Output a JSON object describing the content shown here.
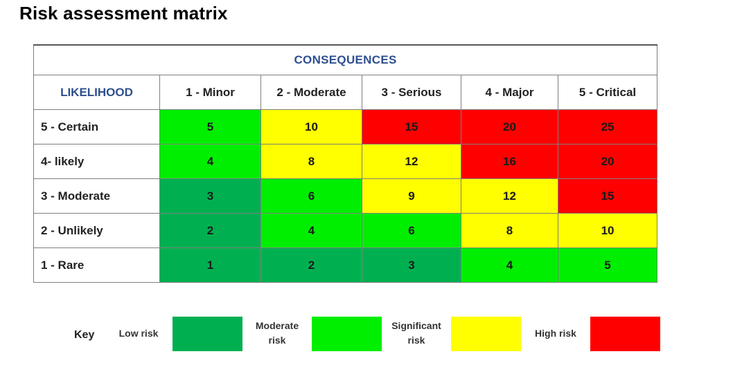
{
  "title": "Risk assessment matrix",
  "matrix": {
    "consequences_label": "CONSEQUENCES",
    "likelihood_label": "LIKELIHOOD",
    "columns": [
      "1 - Minor",
      "2 - Moderate",
      "3 - Serious",
      "4 - Major",
      "5 - Critical"
    ],
    "rows": [
      {
        "label": "5 - Certain",
        "values": [
          "5",
          "10",
          "15",
          "20",
          "25"
        ],
        "levels": [
          "significant",
          "high-sig",
          "high",
          "high",
          "high"
        ]
      },
      {
        "label": "4- likely",
        "values": [
          "4",
          "8",
          "12",
          "16",
          "20"
        ],
        "levels": [
          "significant",
          "high-sig",
          "high-sig",
          "high",
          "high"
        ]
      },
      {
        "label": "3 - Moderate",
        "values": [
          "3",
          "6",
          "9",
          "12",
          "15"
        ],
        "levels": [
          "low",
          "significant",
          "high-sig",
          "high-sig",
          "high"
        ]
      },
      {
        "label": "2 - Unlikely",
        "values": [
          "2",
          "4",
          "6",
          "8",
          "10"
        ],
        "levels": [
          "low",
          "significant",
          "significant",
          "high-sig",
          "high-sig"
        ]
      },
      {
        "label": "1 - Rare",
        "values": [
          "1",
          "2",
          "3",
          "4",
          "5"
        ],
        "levels": [
          "low",
          "low",
          "low",
          "significant",
          "significant"
        ]
      }
    ]
  },
  "colors": {
    "low": "#00b050",
    "significant": "#00ee00",
    "high-sig": "#ffff00",
    "high": "#ff0000"
  },
  "key": {
    "label": "Key",
    "items": [
      {
        "text_line1": "Low risk",
        "text_line2": "",
        "color": "#00b050"
      },
      {
        "text_line1": "Moderate",
        "text_line2": "risk",
        "color": "#00ee00"
      },
      {
        "text_line1": "Significant",
        "text_line2": "risk",
        "color": "#ffff00"
      },
      {
        "text_line1": "High risk",
        "text_line2": "",
        "color": "#ff0000"
      }
    ]
  }
}
